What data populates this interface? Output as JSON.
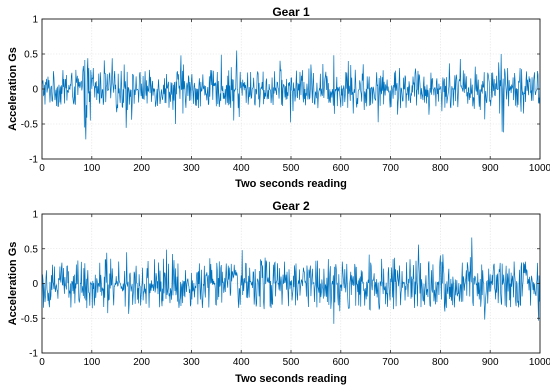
{
  "chart_data": [
    {
      "type": "line",
      "title": "Gear 1",
      "xlabel": "Two seconds reading",
      "ylabel": "Acceleration Gs",
      "xlim": [
        0,
        1000
      ],
      "ylim": [
        -1,
        1
      ],
      "xticks": [
        0,
        100,
        200,
        300,
        400,
        500,
        600,
        700,
        800,
        900,
        1000
      ],
      "yticks": [
        -1,
        -0.5,
        0,
        0.5,
        1
      ],
      "ytick_labels": [
        "-1",
        "-0.5",
        "0",
        "0.5",
        "1"
      ],
      "grid": true,
      "series": [
        {
          "color": "#0072BD",
          "n_points": 1001,
          "noise_amplitude": 0.13,
          "events": [
            {
              "x": 83,
              "y": 0.33
            },
            {
              "x": 85,
              "y": -0.55
            },
            {
              "x": 88,
              "y": -0.72
            },
            {
              "x": 92,
              "y": 0.44
            },
            {
              "x": 97,
              "y": -0.45
            },
            {
              "x": 103,
              "y": 0.3
            },
            {
              "x": 165,
              "y": 0.35
            },
            {
              "x": 172,
              "y": -0.3
            },
            {
              "x": 268,
              "y": -0.5
            },
            {
              "x": 279,
              "y": 0.48
            },
            {
              "x": 283,
              "y": -0.35
            },
            {
              "x": 385,
              "y": -0.45
            },
            {
              "x": 391,
              "y": 0.55
            },
            {
              "x": 396,
              "y": -0.4
            },
            {
              "x": 540,
              "y": 0.35
            },
            {
              "x": 615,
              "y": 0.4
            },
            {
              "x": 625,
              "y": -0.35
            },
            {
              "x": 718,
              "y": 0.3
            },
            {
              "x": 870,
              "y": 0.32
            },
            {
              "x": 880,
              "y": -0.3
            },
            {
              "x": 917,
              "y": 0.38
            },
            {
              "x": 922,
              "y": 0.5
            },
            {
              "x": 927,
              "y": -0.62
            },
            {
              "x": 935,
              "y": 0.3
            },
            {
              "x": 960,
              "y": 0.3
            },
            {
              "x": 967,
              "y": -0.35
            }
          ]
        }
      ]
    },
    {
      "type": "line",
      "title": "Gear 2",
      "xlabel": "Two seconds reading",
      "ylabel": "Acceleration Gs",
      "xlim": [
        0,
        1000
      ],
      "ylim": [
        -1,
        1
      ],
      "xticks": [
        0,
        100,
        200,
        300,
        400,
        500,
        600,
        700,
        800,
        900,
        1000
      ],
      "yticks": [
        -1,
        -0.5,
        0,
        0.5,
        1
      ],
      "ytick_labels": [
        "-1",
        "-0.5",
        "0",
        "0.5",
        "1"
      ],
      "grid": true,
      "series": [
        {
          "color": "#0072BD",
          "n_points": 1001,
          "noise_amplitude": 0.17,
          "events": [
            {
              "x": 40,
              "y": 0.3
            },
            {
              "x": 96,
              "y": -0.32
            },
            {
              "x": 170,
              "y": 0.45
            },
            {
              "x": 175,
              "y": -0.3
            },
            {
              "x": 275,
              "y": -0.35
            },
            {
              "x": 395,
              "y": -0.35
            },
            {
              "x": 402,
              "y": 0.48
            },
            {
              "x": 450,
              "y": 0.33
            },
            {
              "x": 575,
              "y": 0.35
            },
            {
              "x": 586,
              "y": -0.58
            },
            {
              "x": 598,
              "y": -0.4
            },
            {
              "x": 660,
              "y": 0.3
            },
            {
              "x": 705,
              "y": 0.35
            },
            {
              "x": 790,
              "y": -0.3
            },
            {
              "x": 805,
              "y": 0.42
            },
            {
              "x": 812,
              "y": -0.35
            },
            {
              "x": 860,
              "y": 0.38
            },
            {
              "x": 930,
              "y": -0.32
            }
          ]
        }
      ]
    }
  ]
}
